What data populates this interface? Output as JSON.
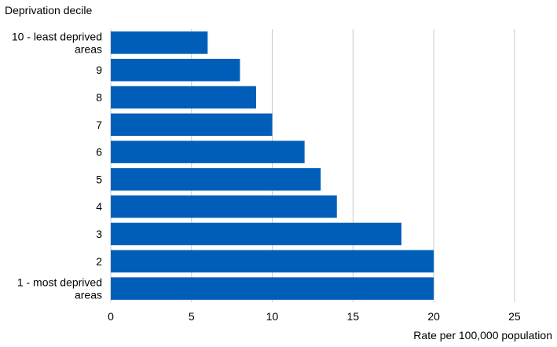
{
  "chart_data": {
    "type": "bar",
    "orientation": "horizontal",
    "ylabel": "Deprivation decile",
    "xlabel": "Rate per 100,000 population",
    "categories": [
      "10 - least deprived areas",
      "9",
      "8",
      "7",
      "6",
      "5",
      "4",
      "3",
      "2",
      "1 - most deprived areas"
    ],
    "values": [
      6,
      8,
      9,
      10,
      12,
      13,
      14,
      18,
      20,
      20
    ],
    "xlim": [
      0,
      27
    ],
    "xticks": [
      0,
      5,
      10,
      15,
      20,
      25
    ],
    "grid": "vertical",
    "bar_color": "#005EB8",
    "legend": "none"
  }
}
